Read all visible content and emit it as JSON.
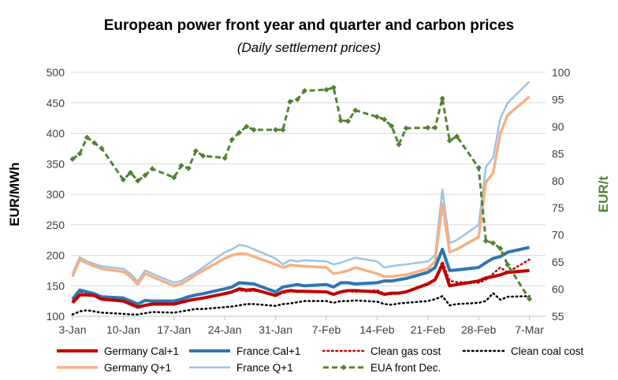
{
  "chart_data": {
    "type": "line",
    "title": "European power front year and quarter and carbon prices",
    "subtitle": "(Daily settlement prices)",
    "ylabel": "EUR/MWh",
    "y2label": "EUR/t",
    "ylim": [
      100,
      500
    ],
    "yticks": [
      100,
      150,
      200,
      250,
      300,
      350,
      400,
      450,
      500
    ],
    "y2lim": [
      55,
      100
    ],
    "y2ticks": [
      55,
      60,
      65,
      70,
      75,
      80,
      85,
      90,
      95,
      100
    ],
    "xlim": [
      0,
      65
    ],
    "xticks": [
      {
        "label": "3-Jan",
        "x": 0
      },
      {
        "label": "10-Jan",
        "x": 7
      },
      {
        "label": "17-Jan",
        "x": 14
      },
      {
        "label": "24-Jan",
        "x": 21
      },
      {
        "label": "31-Jan",
        "x": 28
      },
      {
        "label": "7-Feb",
        "x": 35
      },
      {
        "label": "14-Feb",
        "x": 42
      },
      {
        "label": "21-Feb",
        "x": 49
      },
      {
        "label": "28-Feb",
        "x": 56
      },
      {
        "label": "7-Mar",
        "x": 63
      }
    ],
    "x": [
      0,
      1,
      2,
      3,
      4,
      7,
      8,
      9,
      10,
      11,
      14,
      15,
      16,
      17,
      18,
      21,
      22,
      23,
      24,
      25,
      28,
      29,
      30,
      31,
      32,
      35,
      36,
      37,
      38,
      39,
      42,
      43,
      44,
      45,
      46,
      49,
      50,
      51,
      52,
      53,
      56,
      57,
      58,
      59,
      60,
      63
    ],
    "grid": true,
    "legend_position": "bottom",
    "series": [
      {
        "name": "Germany Cal+1",
        "axis": "left",
        "color": "#c00000",
        "style": "solid",
        "width": 4,
        "values": [
          122,
          135,
          135,
          134,
          128,
          125,
          120,
          115,
          118,
          120,
          120,
          123,
          126,
          128,
          130,
          137,
          140,
          145,
          143,
          144,
          134,
          140,
          142,
          141,
          141,
          140,
          136,
          140,
          142,
          142,
          140,
          136,
          138,
          138,
          140,
          153,
          160,
          185,
          150,
          152,
          158,
          163,
          165,
          168,
          172,
          175
        ]
      },
      {
        "name": "France Cal+1",
        "axis": "left",
        "color": "#2e75b6",
        "style": "solid",
        "width": 4,
        "values": [
          128,
          143,
          140,
          137,
          132,
          130,
          125,
          120,
          126,
          125,
          125,
          128,
          132,
          135,
          137,
          145,
          148,
          155,
          154,
          153,
          140,
          148,
          150,
          152,
          150,
          152,
          148,
          155,
          155,
          153,
          155,
          158,
          158,
          160,
          162,
          172,
          180,
          210,
          175,
          176,
          180,
          188,
          195,
          198,
          205,
          213
        ]
      },
      {
        "name": "Clean gas cost",
        "axis": "left",
        "color": "#c00000",
        "style": "dotted",
        "width": 2.5,
        "values": [
          125,
          140,
          138,
          134,
          128,
          125,
          120,
          115,
          118,
          120,
          120,
          123,
          126,
          128,
          130,
          138,
          140,
          143,
          141,
          142,
          135,
          138,
          141,
          140,
          141,
          140,
          135,
          140,
          141,
          140,
          143,
          137,
          136,
          138,
          140,
          152,
          160,
          190,
          158,
          156,
          155,
          160,
          170,
          180,
          172,
          193
        ]
      },
      {
        "name": "Clean coal cost",
        "axis": "left",
        "color": "#000000",
        "style": "dotted",
        "width": 2.5,
        "values": [
          103,
          108,
          110,
          108,
          106,
          104,
          103,
          103,
          105,
          107,
          106,
          108,
          110,
          112,
          112,
          115,
          116,
          118,
          120,
          120,
          117,
          120,
          121,
          123,
          125,
          125,
          122,
          125,
          125,
          126,
          124,
          120,
          119,
          121,
          122,
          125,
          128,
          133,
          118,
          120,
          122,
          125,
          138,
          127,
          132,
          133
        ]
      },
      {
        "name": "Germany Q+1",
        "axis": "left",
        "color": "#f4b183",
        "style": "solid",
        "width": 3.5,
        "values": [
          165,
          193,
          187,
          182,
          178,
          173,
          165,
          152,
          170,
          165,
          150,
          153,
          160,
          168,
          175,
          195,
          200,
          203,
          202,
          198,
          185,
          180,
          184,
          183,
          182,
          180,
          170,
          172,
          175,
          180,
          170,
          165,
          165,
          167,
          168,
          178,
          190,
          285,
          205,
          210,
          230,
          320,
          335,
          400,
          430,
          460
        ]
      },
      {
        "name": "France Q+1",
        "axis": "left",
        "color": "#9dc3e6",
        "style": "solid",
        "width": 2.5,
        "values": [
          170,
          197,
          190,
          186,
          182,
          178,
          170,
          157,
          175,
          170,
          155,
          158,
          165,
          172,
          180,
          205,
          210,
          217,
          215,
          210,
          195,
          185,
          192,
          190,
          192,
          190,
          185,
          188,
          192,
          196,
          190,
          180,
          182,
          184,
          185,
          190,
          200,
          308,
          220,
          225,
          250,
          345,
          360,
          425,
          450,
          485
        ]
      },
      {
        "name": "EUA front Dec.",
        "axis": "right",
        "color": "#548235",
        "style": "dashed",
        "width": 3,
        "marker": "diamond",
        "values": [
          84,
          85,
          88,
          87,
          86,
          80.2,
          81.5,
          80,
          81,
          82.2,
          80.6,
          82.8,
          82.3,
          85.5,
          84.6,
          84.2,
          87.6,
          88.9,
          90,
          89.4,
          89.4,
          89.4,
          94.6,
          95,
          96.6,
          96.8,
          97.2,
          91.1,
          91,
          93,
          91.8,
          91.3,
          90.1,
          86.7,
          89.7,
          89.8,
          89.8,
          95.2,
          87.4,
          88.2,
          82.4,
          68.9,
          68.5,
          67.5,
          64.5,
          58.2
        ]
      }
    ]
  }
}
